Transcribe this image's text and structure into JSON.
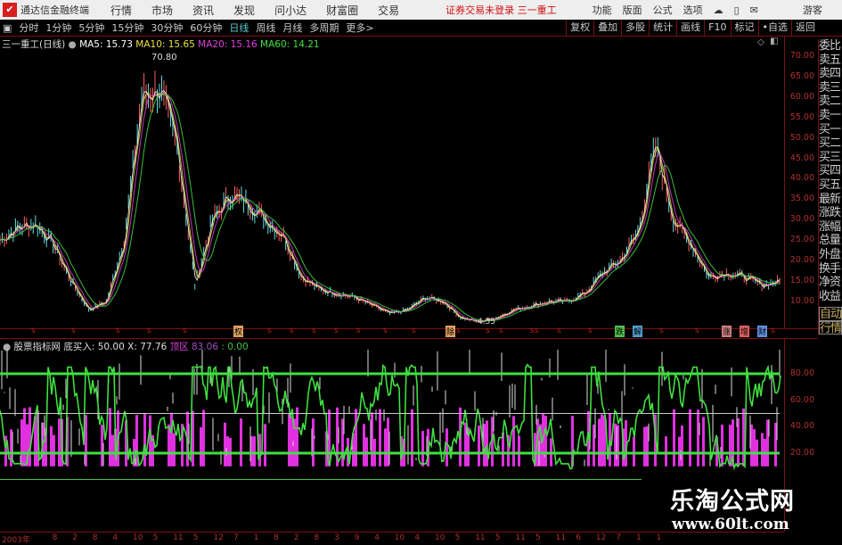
{
  "app": {
    "name": "通达信金融终端",
    "menus": [
      "行情",
      "市场",
      "资讯",
      "发现",
      "问小达",
      "财富圈",
      "交易"
    ],
    "notice": "证券交易未登录",
    "stock_link": "三一重工",
    "right_menus": [
      "功能",
      "版面",
      "公式",
      "选项"
    ],
    "guest": "游客"
  },
  "toolbar": {
    "periods": [
      "分时",
      "1分钟",
      "5分钟",
      "15分钟",
      "30分钟",
      "60分钟",
      "日线",
      "周线",
      "月线",
      "多周期",
      "更多>"
    ],
    "active": "日线",
    "right_buttons": [
      "复权",
      "叠加",
      "多股",
      "统计",
      "画线",
      "F10",
      "标记",
      "•自选",
      "返回"
    ]
  },
  "price_pane": {
    "title": "三一重工(日线)",
    "ma5": "MA5: 15.73",
    "ma10": "MA10: 15.65",
    "ma20": "MA20: 15.16",
    "ma60": "MA60: 14.21",
    "high_label": "70.80",
    "low_label": "4.55",
    "y_ticks": [
      "70.00",
      "65.00",
      "60.00",
      "55.00",
      "50.00",
      "45.00",
      "40.00",
      "35.00",
      "30.00",
      "25.00",
      "20.00",
      "15.00",
      "10.00"
    ]
  },
  "event_markers": [
    "除",
    "权",
    "跌",
    "解",
    "涨",
    "增",
    "财"
  ],
  "indicator": {
    "name": "股票指标网",
    "label": "底买入: 50.00",
    "x_value": "X: 77.76",
    "zone_label": "顶区",
    "zone_value": "83.06",
    "extra": ": 0.00",
    "y_ticks": [
      "80.00",
      "60.00",
      "40.00",
      "20.00"
    ]
  },
  "side_panel": [
    "委比",
    "卖五",
    "卖四",
    "卖三",
    "卖二",
    "卖一",
    "买一",
    "买二",
    "买三",
    "买四",
    "买五",
    "最新",
    "涨跌",
    "涨幅",
    "总量",
    "外盘",
    "换手",
    "净资",
    "收益"
  ],
  "side_buttons": [
    "自动",
    "行情"
  ],
  "time_axis": [
    "2003年",
    "8",
    "2",
    "8",
    "4",
    "10",
    "5",
    "11",
    "5",
    "12",
    "7",
    "1",
    "8",
    "2",
    "8",
    "3",
    "9",
    "4",
    "10",
    "4",
    "10",
    "5",
    "11",
    "5",
    "11",
    "5",
    "11",
    "6",
    "12",
    "7",
    "1",
    "1"
  ],
  "watermark": {
    "title": "乐淘公式网",
    "url": "www.60lt.com"
  },
  "colors": {
    "ma5": "#ffffff",
    "ma10": "#e8e040",
    "ma20": "#e040e0",
    "ma60": "#40e040",
    "grid": "#7a1010",
    "axis_text": "#b03030"
  },
  "chart_data": {
    "type": "line",
    "price_closes": [
      25,
      28,
      29,
      24,
      15,
      8,
      10,
      25,
      60,
      62,
      48,
      14,
      30,
      36,
      34,
      30,
      26,
      16,
      13,
      12,
      11,
      9,
      7,
      8,
      11,
      10,
      6,
      5,
      6,
      8,
      9,
      10,
      10,
      12,
      17,
      20,
      27,
      48,
      30,
      24,
      16,
      17,
      16,
      14,
      15
    ],
    "ylim": [
      5,
      72
    ],
    "indicator_ylim": [
      10,
      90
    ],
    "indicator_levels": [
      80,
      50,
      20
    ]
  }
}
